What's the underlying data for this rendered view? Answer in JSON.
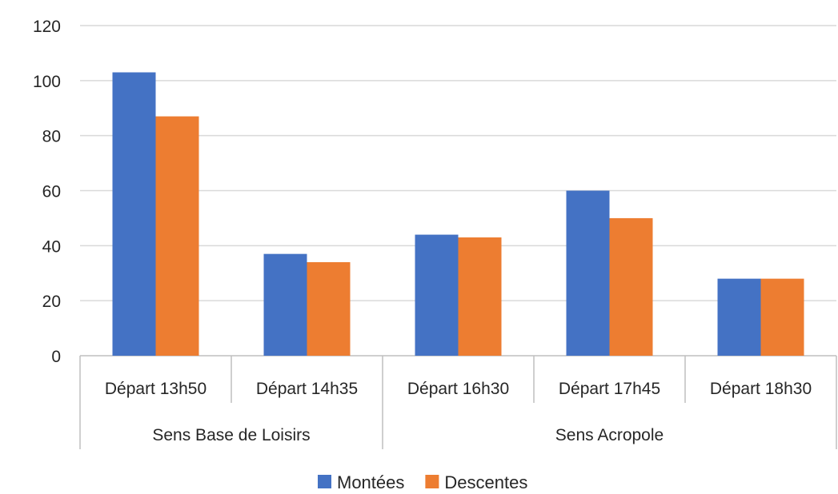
{
  "chart_data": {
    "type": "bar",
    "categories": [
      "Départ 13h50",
      "Départ 14h35",
      "Départ 16h30",
      "Départ 17h45",
      "Départ 18h30"
    ],
    "groups": [
      {
        "label": "Sens Base de Loisirs",
        "categories": [
          "Départ 13h50",
          "Départ 14h35"
        ]
      },
      {
        "label": "Sens Acropole",
        "categories": [
          "Départ 16h30",
          "Départ 17h45",
          "Départ 18h30"
        ]
      }
    ],
    "series": [
      {
        "name": "Montées",
        "color": "#4472C4",
        "values": [
          103,
          37,
          44,
          60,
          28
        ]
      },
      {
        "name": "Descentes",
        "color": "#ED7D31",
        "values": [
          87,
          34,
          43,
          50,
          28
        ]
      }
    ],
    "title": "",
    "xlabel": "",
    "ylabel": "",
    "ylim": [
      0,
      120
    ],
    "yticks": [
      0,
      20,
      40,
      60,
      80,
      100,
      120
    ],
    "grid": true,
    "legend_position": "bottom"
  }
}
